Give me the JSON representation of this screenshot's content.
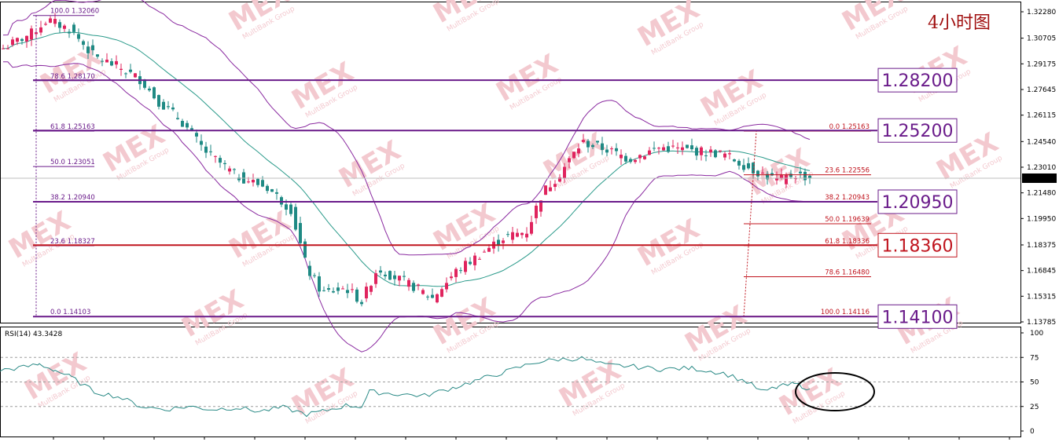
{
  "chart_data": {
    "type": "candlestick",
    "timeframe_label": "4小时图",
    "price_axis": {
      "ticks": [
        "1.32280",
        "1.30705",
        "1.29175",
        "1.27645",
        "1.26115",
        "1.24540",
        "1.23010",
        "1.21480",
        "1.19950",
        "1.18375",
        "1.16845",
        "1.15315",
        "1.13785"
      ],
      "ylim": [
        1.1358,
        1.3255
      ]
    },
    "current_price": "1.22355",
    "rsi": {
      "label": "RSI(14) 43.3428",
      "ticks": [
        "100",
        "75",
        "50",
        "25",
        "0"
      ],
      "levels": [
        75,
        50,
        25
      ],
      "ylim": [
        0,
        100
      ]
    },
    "fib_left": [
      {
        "text": "100.0  1.32060",
        "price": 1.3206
      },
      {
        "text": "78.6  1.28170",
        "price": 1.2817
      },
      {
        "text": "61.8  1.25163",
        "price": 1.25163
      },
      {
        "text": "50.0  1.23051",
        "price": 1.23051
      },
      {
        "text": "38.2  1.20940",
        "price": 1.2094
      },
      {
        "text": "23.6  1.18327",
        "price": 1.18327
      },
      {
        "text": "0.0  1.14103",
        "price": 1.14103
      }
    ],
    "fib_right": [
      {
        "text": "0.0  1.25163",
        "price": 1.25163
      },
      {
        "text": "23.6  1.22556",
        "price": 1.22556
      },
      {
        "text": "38.2  1.20943",
        "price": 1.20943
      },
      {
        "text": "50.0  1.19639",
        "price": 1.19639
      },
      {
        "text": "61.8  1.18336",
        "price": 1.18336
      },
      {
        "text": "78.6  1.16480",
        "price": 1.1648
      },
      {
        "text": "100.0  1.14116",
        "price": 1.14116
      }
    ],
    "key_levels": [
      {
        "label": "1.28200",
        "price": 1.282,
        "color": "#6a1b8a"
      },
      {
        "label": "1.25200",
        "price": 1.252,
        "color": "#6a1b8a"
      },
      {
        "label": "1.20950",
        "price": 1.2095,
        "color": "#6a1b8a"
      },
      {
        "label": "1.18360",
        "price": 1.1836,
        "color": "#c0141e"
      },
      {
        "label": "1.14100",
        "price": 1.141,
        "color": "#6a1b8a"
      }
    ],
    "close_path": [
      [
        0,
        1.3
      ],
      [
        40,
        1.31
      ],
      [
        60,
        1.318
      ],
      [
        90,
        1.312
      ],
      [
        120,
        1.296
      ],
      [
        150,
        1.29
      ],
      [
        180,
        1.282
      ],
      [
        200,
        1.27
      ],
      [
        230,
        1.258
      ],
      [
        260,
        1.24
      ],
      [
        300,
        1.225
      ],
      [
        340,
        1.218
      ],
      [
        370,
        1.205
      ],
      [
        390,
        1.17
      ],
      [
        410,
        1.155
      ],
      [
        440,
        1.158
      ],
      [
        460,
        1.15
      ],
      [
        480,
        1.17
      ],
      [
        500,
        1.165
      ],
      [
        530,
        1.158
      ],
      [
        550,
        1.152
      ],
      [
        580,
        1.168
      ],
      [
        610,
        1.178
      ],
      [
        640,
        1.188
      ],
      [
        670,
        1.192
      ],
      [
        690,
        1.215
      ],
      [
        710,
        1.225
      ],
      [
        740,
        1.245
      ],
      [
        770,
        1.241
      ],
      [
        800,
        1.235
      ],
      [
        840,
        1.242
      ],
      [
        880,
        1.24
      ],
      [
        920,
        1.238
      ],
      [
        960,
        1.228
      ],
      [
        990,
        1.222
      ],
      [
        1010,
        1.226
      ],
      [
        1030,
        1.224
      ]
    ],
    "rsi_path": [
      [
        0,
        62
      ],
      [
        30,
        65
      ],
      [
        50,
        68
      ],
      [
        70,
        62
      ],
      [
        90,
        55
      ],
      [
        120,
        40
      ],
      [
        150,
        35
      ],
      [
        180,
        25
      ],
      [
        210,
        22
      ],
      [
        240,
        25
      ],
      [
        270,
        22
      ],
      [
        300,
        24
      ],
      [
        330,
        20
      ],
      [
        360,
        24
      ],
      [
        390,
        17
      ],
      [
        410,
        20
      ],
      [
        440,
        26
      ],
      [
        460,
        25
      ],
      [
        470,
        40
      ],
      [
        500,
        38
      ],
      [
        540,
        36
      ],
      [
        580,
        45
      ],
      [
        620,
        55
      ],
      [
        650,
        62
      ],
      [
        680,
        70
      ],
      [
        710,
        73
      ],
      [
        740,
        74
      ],
      [
        770,
        67
      ],
      [
        800,
        66
      ],
      [
        840,
        63
      ],
      [
        880,
        64
      ],
      [
        920,
        59
      ],
      [
        950,
        50
      ],
      [
        970,
        40
      ],
      [
        990,
        45
      ],
      [
        1010,
        48
      ],
      [
        1020,
        46
      ],
      [
        1030,
        43
      ]
    ],
    "annotation": "ellipse around latest RSI reading"
  },
  "watermark": {
    "brand": "MEX",
    "subtext": "MultiBank Group"
  }
}
